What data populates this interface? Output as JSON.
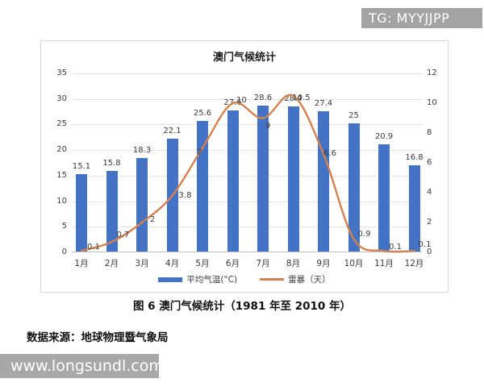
{
  "badge": {
    "text": "TG: MYYJJPP"
  },
  "watermark": {
    "text": "www.longsundl.com"
  },
  "caption": "图 6 澳门气候统计（1981 年至 2010 年）",
  "source": "数据来源：地球物理暨气象局",
  "colors": {
    "bar": "#4472c4",
    "line": "#d2824e",
    "badge_bg": "#a3a3a3",
    "grid": "#e4e4e4",
    "border": "#d9d9d9"
  },
  "chart_data": {
    "type": "bar+line",
    "title": "澳门气候统计",
    "categories": [
      "1月",
      "2月",
      "3月",
      "4月",
      "5月",
      "6月",
      "7月",
      "8月",
      "9月",
      "10月",
      "11月",
      "12月"
    ],
    "series": [
      {
        "name": "平均气温(°C)",
        "type": "bar",
        "axis": "left",
        "color": "#4472c4",
        "values": [
          15.1,
          15.8,
          18.3,
          22.1,
          25.6,
          27.6,
          28.6,
          28.4,
          27.4,
          25,
          20.9,
          16.8
        ]
      },
      {
        "name": "雷暴（天）",
        "type": "line",
        "axis": "right",
        "color": "#d2824e",
        "values": [
          0.1,
          0.7,
          2,
          3.8,
          7,
          10,
          9,
          10.5,
          6.6,
          0.9,
          0.1,
          0.1
        ]
      }
    ],
    "left_axis": {
      "min": 0,
      "max": 35,
      "ticks": [
        0,
        5,
        10,
        15,
        20,
        25,
        30,
        35
      ]
    },
    "right_axis": {
      "min": 0,
      "max": 12,
      "ticks": [
        0,
        2,
        4,
        6,
        8,
        10,
        12
      ]
    },
    "xlabel": "",
    "ylabel": "",
    "grid": true,
    "legend_position": "bottom"
  }
}
